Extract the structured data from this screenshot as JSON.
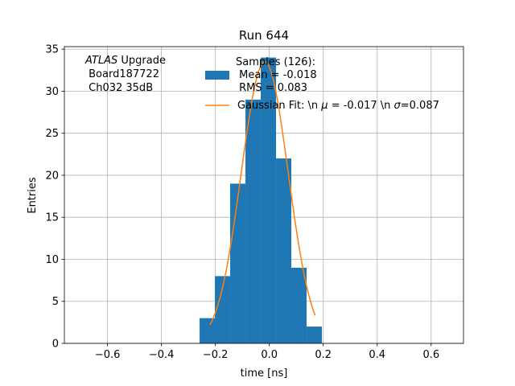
{
  "chart_data": {
    "type": "bar",
    "title": "Run 644",
    "xlabel": "time [ns]",
    "ylabel": "Entries",
    "xlim": [
      -0.76,
      0.72
    ],
    "ylim": [
      0,
      35.3
    ],
    "grid": true,
    "x_ticks": [
      -0.6,
      -0.4,
      -0.2,
      0.0,
      0.2,
      0.4,
      0.6
    ],
    "x_tick_labels": [
      "−0.6",
      "−0.4",
      "−0.2",
      "0.0",
      "0.2",
      "0.4",
      "0.6"
    ],
    "y_ticks": [
      0,
      5,
      10,
      15,
      20,
      25,
      30,
      35
    ],
    "y_tick_labels": [
      "0",
      "5",
      "10",
      "15",
      "20",
      "25",
      "30",
      "35"
    ],
    "histogram": {
      "name": "Samples (126):\n Mean = -0.018\n RMS = 0.083",
      "color": "#1f77b4",
      "bins": [
        {
          "x0": -0.2586,
          "x1": -0.2019,
          "count": 3
        },
        {
          "x0": -0.2019,
          "x1": -0.1452,
          "count": 8
        },
        {
          "x0": -0.1452,
          "x1": -0.0885,
          "count": 19
        },
        {
          "x0": -0.0885,
          "x1": -0.0318,
          "count": 29
        },
        {
          "x0": -0.0318,
          "x1": 0.0249,
          "count": 34
        },
        {
          "x0": 0.0249,
          "x1": 0.0816,
          "count": 22
        },
        {
          "x0": 0.0816,
          "x1": 0.1383,
          "count": 9
        },
        {
          "x0": 0.1383,
          "x1": 0.195,
          "count": 2
        }
      ]
    },
    "fit": {
      "name": "Gaussian Fit: \\n $\\mu$ = -0.017 \\n $\\sigma$=0.087",
      "color": "#ff7f0e",
      "amplitude": 33.5,
      "mu": -0.017,
      "sigma": 0.087,
      "x_range": [
        -0.22,
        0.17
      ]
    },
    "annotation": {
      "italic": "ATLAS",
      "line1_rest": " Upgrade",
      "line2": " Board187722",
      "line3": " Ch032 35dB"
    },
    "legend": {
      "placement": "top-center",
      "entries": [
        {
          "line1": "Samples (126):",
          "line2": " Mean = -0.018",
          "line3": " RMS = 0.083"
        },
        {
          "text_prefix": "Gaussian Fit: \\n ",
          "mu_symbol": "μ",
          "mu_text": " = -0.017 \\n ",
          "sigma_symbol": "σ",
          "sigma_text": "=0.087"
        }
      ]
    }
  }
}
